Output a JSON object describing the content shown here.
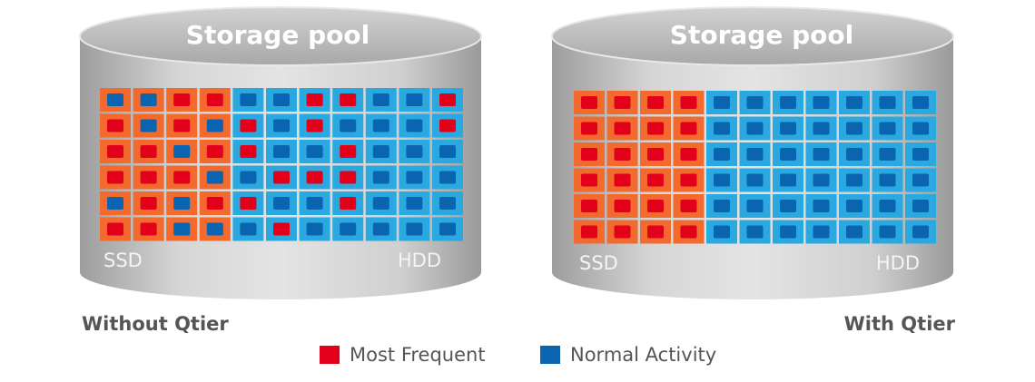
{
  "left": {
    "title": "Storage pool",
    "ssd_label": "SSD",
    "hdd_label": "HDD",
    "caption": "Without Qtier"
  },
  "right": {
    "title": "Storage pool",
    "ssd_label": "SSD",
    "hdd_label": "HDD",
    "caption": "With Qtier"
  },
  "legend": {
    "items": [
      {
        "label": "Most Frequent",
        "color": "#e2001a"
      },
      {
        "label": "Normal Activity",
        "color": "#0a64b0"
      }
    ]
  }
}
